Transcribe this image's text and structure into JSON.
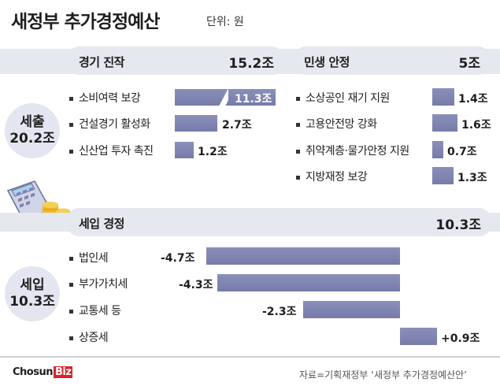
{
  "title": "새정부 추가경정예산",
  "unit": "단위: 원",
  "left_top": {
    "header": "경기 진작",
    "total": "15.2조"
  },
  "right_top": {
    "header": "민생 안정",
    "total": "5조"
  },
  "spending": {
    "label_line1": "세출",
    "label_line2": "20.2조"
  },
  "revenue_header": {
    "header": "세입 경정",
    "total": "10.3조"
  },
  "revenue": {
    "label_line1": "세입",
    "label_line2": "10.3조"
  },
  "source": "자료=기획재정부 ‘새정부 추가경정예산안’",
  "logo": {
    "part1": "Chosun",
    "part2": "Biz"
  },
  "colors": {
    "bar": "#7e83b0",
    "band": "#e6e8ef",
    "logo_accent": "#d8232a"
  },
  "chart_data": [
    {
      "type": "bar",
      "group": "경기 진작",
      "categories": [
        "소비여력 보강",
        "건설경기 활성화",
        "신산업 투자 촉진"
      ],
      "values": [
        11.3,
        2.7,
        1.2
      ],
      "value_labels": [
        "11.3조",
        "2.7조",
        "1.2조"
      ]
    },
    {
      "type": "bar",
      "group": "민생 안정",
      "categories": [
        "소상공인 재기 지원",
        "고용안전망 강화",
        "취약계층·물가안정 지원",
        "지방재정 보강"
      ],
      "values": [
        1.4,
        1.6,
        0.7,
        1.3
      ],
      "value_labels": [
        "1.4조",
        "1.6조",
        "0.7조",
        "1.3조"
      ]
    },
    {
      "type": "bar",
      "group": "세입 경정",
      "categories": [
        "법인세",
        "부가가치세",
        "교통세 등",
        "상증세"
      ],
      "values": [
        -4.7,
        -4.3,
        -2.3,
        0.9
      ],
      "value_labels": [
        "-4.7조",
        "-4.3조",
        "-2.3조",
        "+0.9조"
      ]
    }
  ]
}
